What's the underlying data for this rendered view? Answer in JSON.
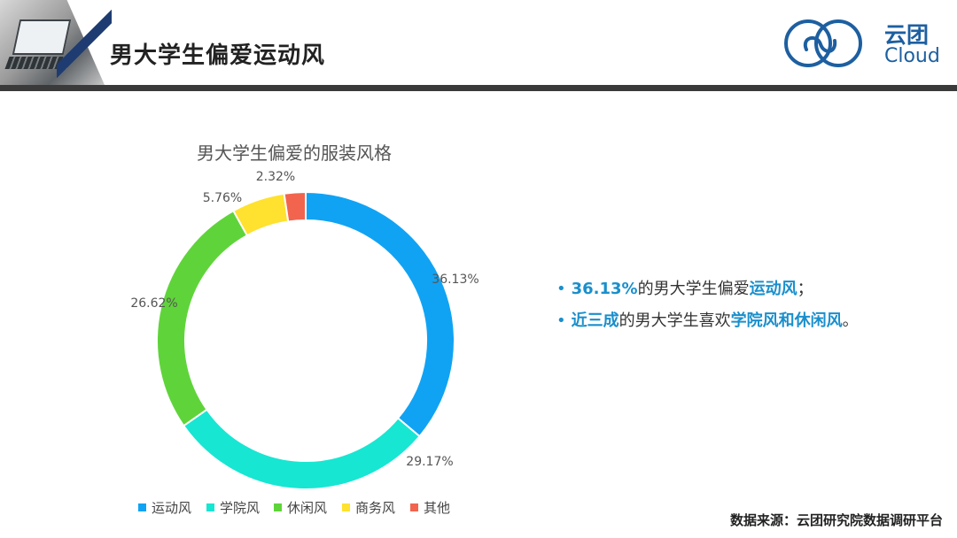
{
  "page": {
    "title": "男大学生偏爱运动风",
    "logo": {
      "cn": "云团",
      "en": "Cloud",
      "color": "#1d5fa0"
    }
  },
  "chart_data": {
    "type": "pie",
    "title": "男大学生偏爱的服装风格",
    "labels": [
      "运动风",
      "学院风",
      "休闲风",
      "商务风",
      "其他"
    ],
    "values": [
      36.13,
      29.17,
      26.62,
      5.76,
      2.32
    ],
    "value_labels": [
      "36.13%",
      "29.17%",
      "26.62%",
      "5.76%",
      "2.32%"
    ],
    "colors": [
      "#10a3f4",
      "#17e6d2",
      "#5fd43a",
      "#ffe12f",
      "#f2644d"
    ],
    "donut": true,
    "legend": "bottom"
  },
  "legend_items": [
    "运动风",
    "学院风",
    "休闲风",
    "商务风",
    "其他"
  ],
  "bullets": [
    {
      "parts": [
        {
          "text": "36.13%",
          "hl": true
        },
        {
          "text": "的男大学生偏爱",
          "hl": false
        },
        {
          "text": "运动风",
          "hl": true
        },
        {
          "text": "；",
          "hl": false
        }
      ]
    },
    {
      "parts": [
        {
          "text": "近三成",
          "hl": true
        },
        {
          "text": "的男大学生喜欢",
          "hl": false
        },
        {
          "text": "学院风和休闲风",
          "hl": true
        },
        {
          "text": "。",
          "hl": false
        }
      ]
    }
  ],
  "bullet_marker": "•",
  "source": "数据来源：云团研究院数据调研平台"
}
